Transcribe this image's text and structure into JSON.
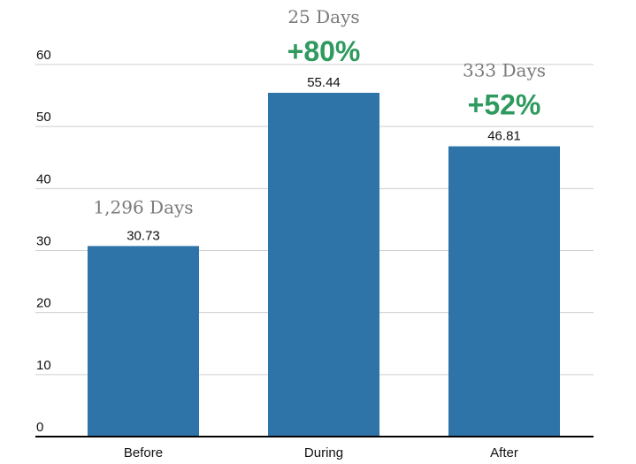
{
  "chart_data": {
    "type": "bar",
    "categories": [
      "Before",
      "During",
      "After"
    ],
    "values": [
      30.73,
      55.44,
      46.81
    ],
    "value_labels": [
      "30.73",
      "55.44",
      "46.81"
    ],
    "durations": [
      "1,296 Days",
      "25 Days",
      "333 Days"
    ],
    "changes": [
      "",
      "+80%",
      "+52%"
    ],
    "title": "",
    "xlabel": "",
    "ylabel": "",
    "ylim": [
      0,
      60
    ],
    "yticks": [
      "0",
      "10",
      "20",
      "30",
      "40",
      "50",
      "60"
    ],
    "grid": true,
    "colors": {
      "bar": "#2e74a8",
      "grid": "#cfcfcf",
      "axis": "#000000",
      "change": "#2e9a5e",
      "duration": "#7a7a7a"
    }
  }
}
